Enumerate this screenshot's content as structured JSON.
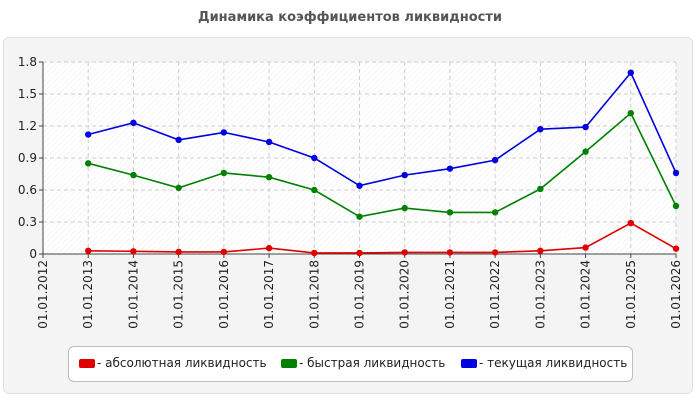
{
  "chart_data": {
    "type": "line",
    "title": "Динамика коэффициентов ликвидности",
    "xlabel": "",
    "ylabel": "",
    "ylim": [
      0,
      1.8
    ],
    "yticks": [
      "0",
      "0.3",
      "0.6",
      "0.9",
      "1.2",
      "1.5",
      "1.8"
    ],
    "categories": [
      "01.01.2012",
      "01.01.2013",
      "01.01.2014",
      "01.01.2015",
      "01.01.2016",
      "01.01.2017",
      "01.01.2018",
      "01.01.2019",
      "01.01.2020",
      "01.01.2021",
      "01.01.2022",
      "01.01.2023",
      "01.01.2024",
      "01.01.2025",
      "01.01.2026"
    ],
    "grid": true,
    "legend_position": "bottom",
    "series": [
      {
        "name": "- абсолютная ликвидность",
        "color": "#e00000",
        "values": [
          null,
          0.03,
          0.025,
          0.02,
          0.02,
          0.055,
          0.01,
          0.01,
          0.015,
          0.015,
          0.015,
          0.03,
          0.06,
          0.29,
          0.05
        ]
      },
      {
        "name": "- быстрая ликвидность",
        "color": "#008000",
        "values": [
          null,
          0.85,
          0.74,
          0.62,
          0.76,
          0.72,
          0.6,
          0.35,
          0.43,
          0.39,
          0.39,
          0.61,
          0.96,
          1.32,
          0.45
        ]
      },
      {
        "name": "- текущая ликвидность",
        "color": "#0000e0",
        "values": [
          null,
          1.12,
          1.23,
          1.07,
          1.14,
          1.05,
          0.9,
          0.64,
          0.74,
          0.8,
          0.88,
          1.17,
          1.19,
          1.7,
          0.76
        ]
      }
    ]
  }
}
